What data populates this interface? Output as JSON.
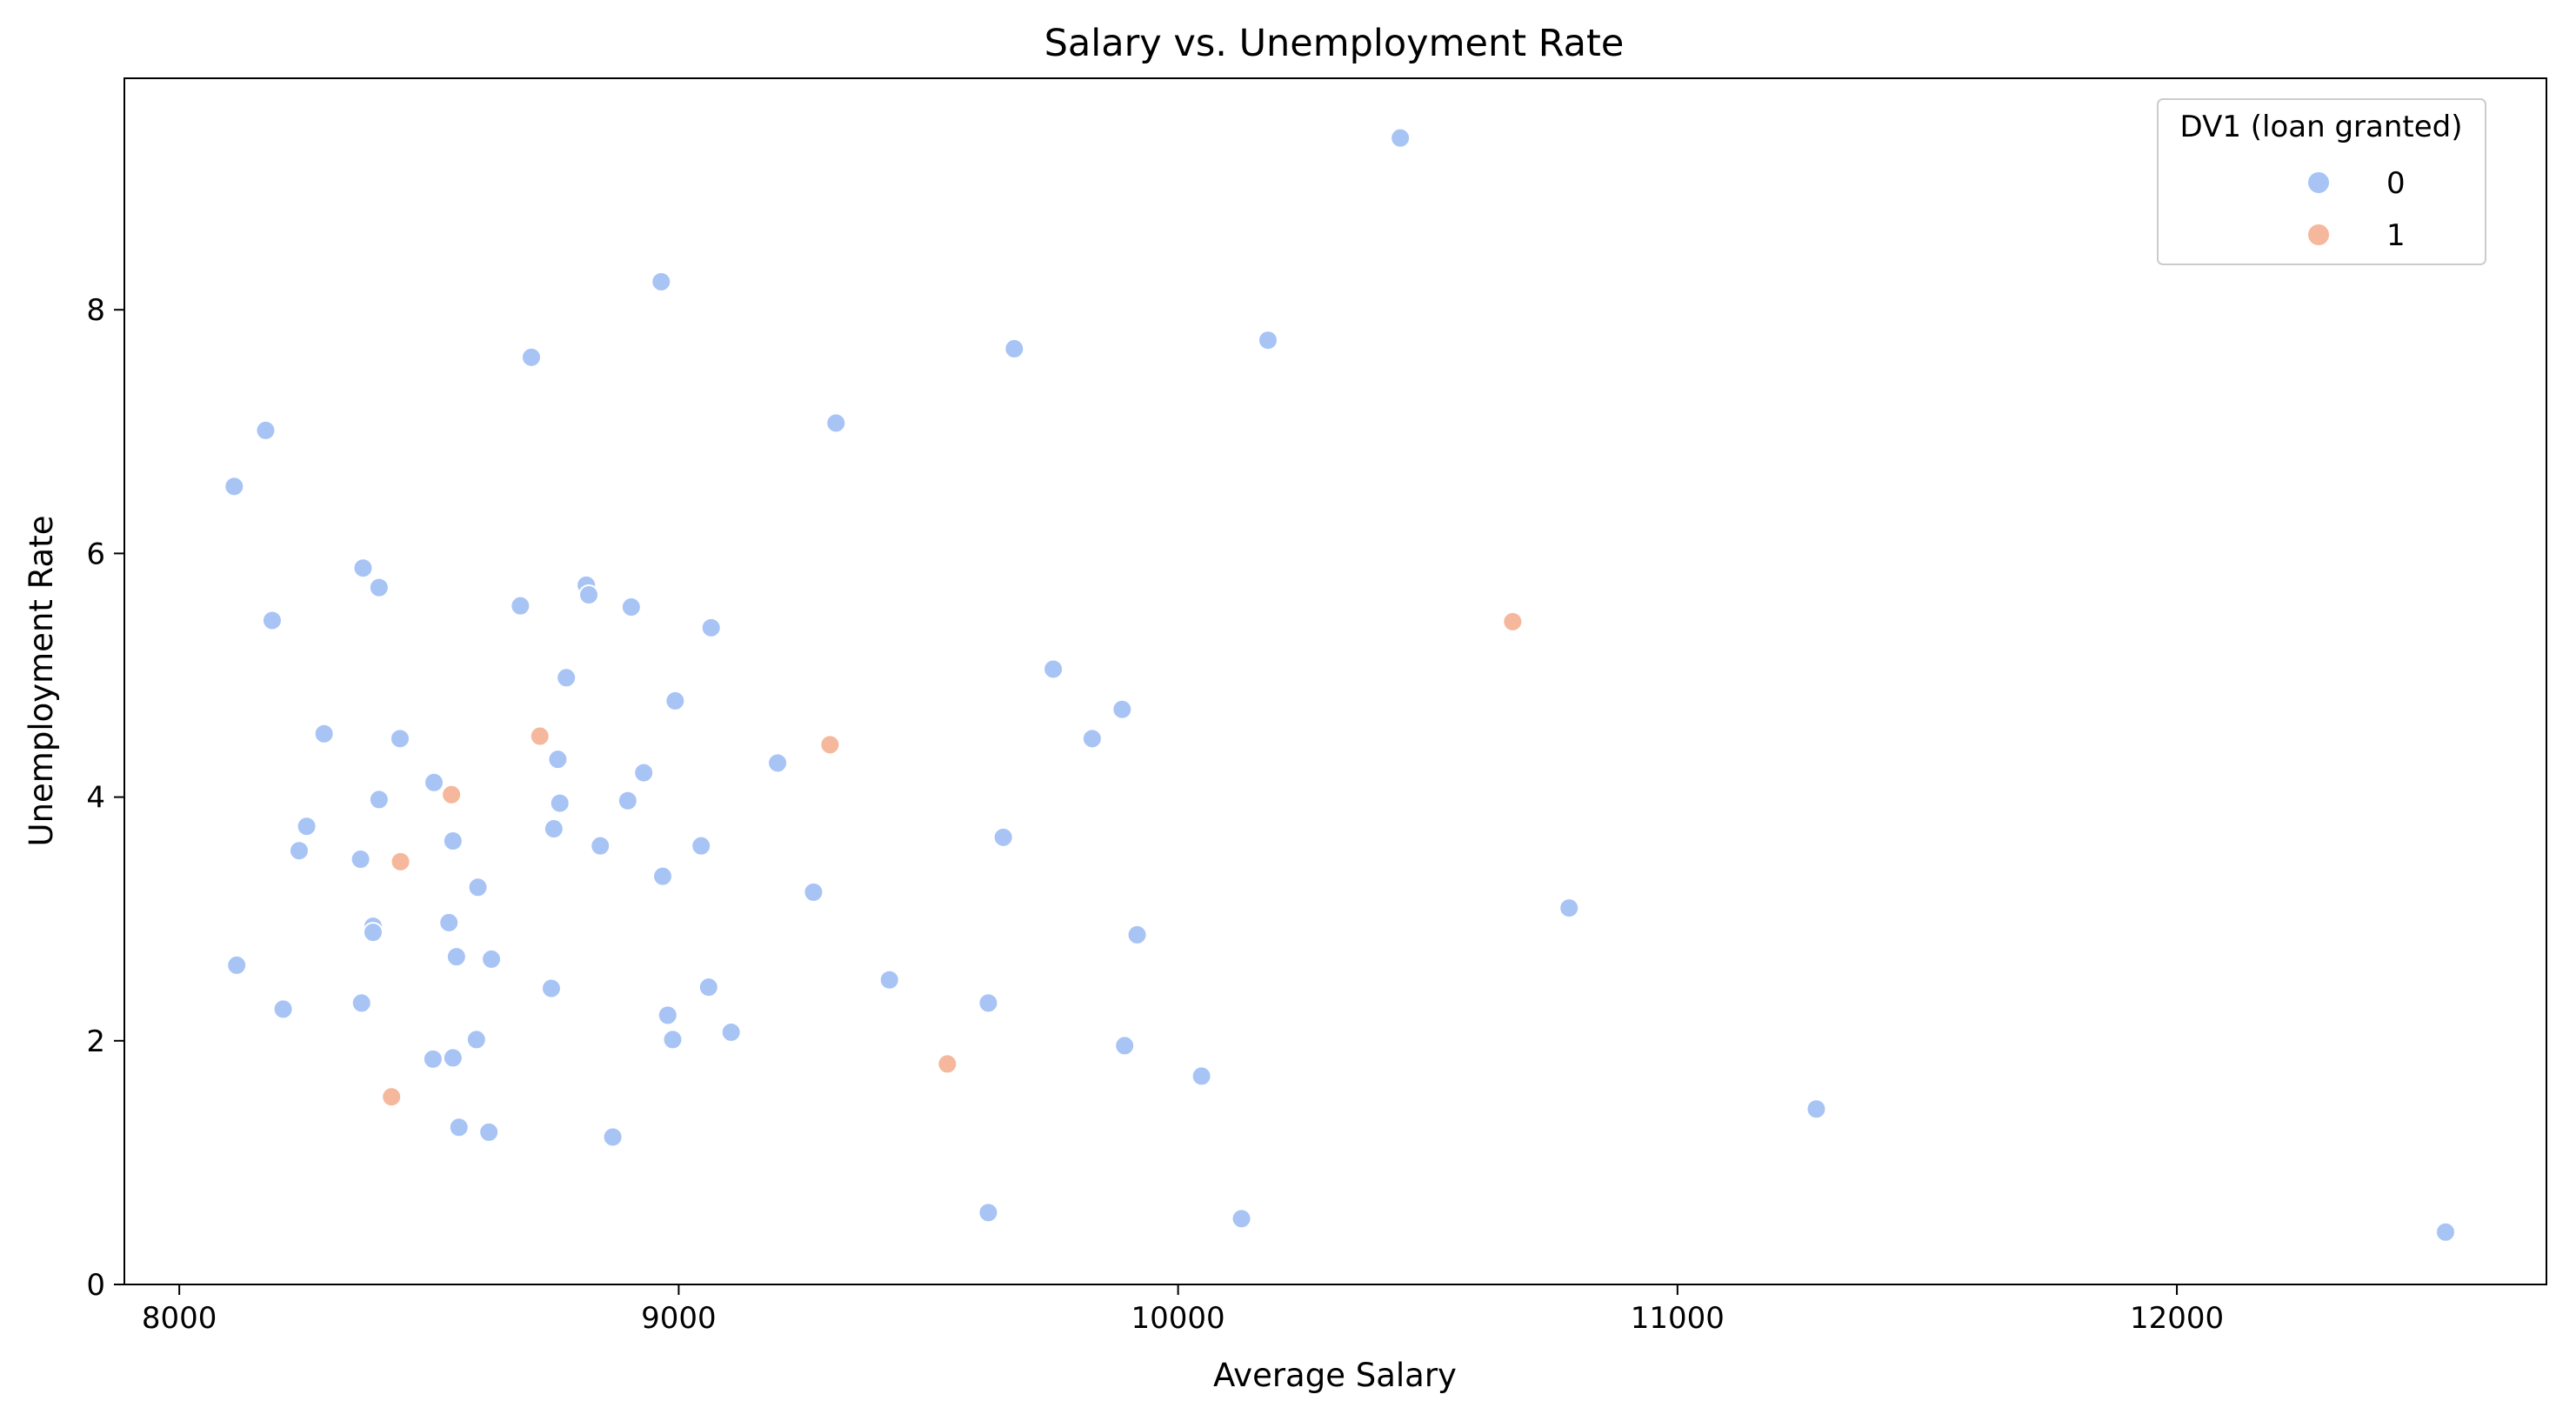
{
  "chart_data": {
    "type": "scatter",
    "title": "Salary vs. Unemployment Rate",
    "xlabel": "Average Salary",
    "ylabel": "Unemployment Rate",
    "xlim": [
      7890,
      12740
    ],
    "ylim": [
      0,
      9.9
    ],
    "xticks": [
      8000,
      9000,
      10000,
      11000,
      12000
    ],
    "yticks": [
      0,
      2,
      4,
      6,
      8
    ],
    "grid": false,
    "legend": {
      "title": "DV1 (loan granted)",
      "placement": "top-right",
      "entries": [
        "0",
        "1"
      ]
    },
    "series": [
      {
        "name": "0",
        "color": "#a8c4f5",
        "points": [
          [
            10445,
            9.41
          ],
          [
            8965,
            8.23
          ],
          [
            9672,
            7.68
          ],
          [
            10180,
            7.75
          ],
          [
            8705,
            7.61
          ],
          [
            8173,
            7.01
          ],
          [
            9315,
            7.07
          ],
          [
            8110,
            6.55
          ],
          [
            8368,
            5.88
          ],
          [
            8400,
            5.72
          ],
          [
            8815,
            5.74
          ],
          [
            8820,
            5.66
          ],
          [
            8683,
            5.57
          ],
          [
            8905,
            5.56
          ],
          [
            8186,
            5.45
          ],
          [
            9065,
            5.39
          ],
          [
            9750,
            5.05
          ],
          [
            8775,
            4.98
          ],
          [
            8993,
            4.79
          ],
          [
            9888,
            4.72
          ],
          [
            8290,
            4.52
          ],
          [
            8442,
            4.48
          ],
          [
            9828,
            4.48
          ],
          [
            8758,
            4.31
          ],
          [
            9198,
            4.28
          ],
          [
            8930,
            4.2
          ],
          [
            8510,
            4.12
          ],
          [
            8400,
            3.98
          ],
          [
            8762,
            3.95
          ],
          [
            8898,
            3.97
          ],
          [
            8255,
            3.76
          ],
          [
            8750,
            3.74
          ],
          [
            9650,
            3.67
          ],
          [
            8548,
            3.64
          ],
          [
            8843,
            3.6
          ],
          [
            9045,
            3.6
          ],
          [
            8240,
            3.56
          ],
          [
            8363,
            3.49
          ],
          [
            8968,
            3.35
          ],
          [
            8598,
            3.26
          ],
          [
            9270,
            3.22
          ],
          [
            10783,
            3.09
          ],
          [
            8540,
            2.97
          ],
          [
            8388,
            2.94
          ],
          [
            8388,
            2.89
          ],
          [
            9918,
            2.87
          ],
          [
            8555,
            2.69
          ],
          [
            8625,
            2.67
          ],
          [
            8115,
            2.62
          ],
          [
            9422,
            2.5
          ],
          [
            9060,
            2.44
          ],
          [
            8745,
            2.43
          ],
          [
            8365,
            2.31
          ],
          [
            9620,
            2.31
          ],
          [
            8208,
            2.26
          ],
          [
            8978,
            2.21
          ],
          [
            9105,
            2.07
          ],
          [
            8595,
            2.01
          ],
          [
            8988,
            2.01
          ],
          [
            9893,
            1.96
          ],
          [
            8508,
            1.85
          ],
          [
            8548,
            1.86
          ],
          [
            10047,
            1.71
          ],
          [
            11278,
            1.44
          ],
          [
            8560,
            1.29
          ],
          [
            8620,
            1.25
          ],
          [
            8868,
            1.21
          ],
          [
            9620,
            0.59
          ],
          [
            10127,
            0.54
          ],
          [
            12538,
            0.43
          ]
        ]
      },
      {
        "name": "1",
        "color": "#f5b89c",
        "points": [
          [
            10670,
            5.44
          ],
          [
            8722,
            4.5
          ],
          [
            9303,
            4.43
          ],
          [
            8545,
            4.02
          ],
          [
            8443,
            3.47
          ],
          [
            9538,
            1.81
          ],
          [
            8425,
            1.54
          ]
        ]
      }
    ]
  }
}
